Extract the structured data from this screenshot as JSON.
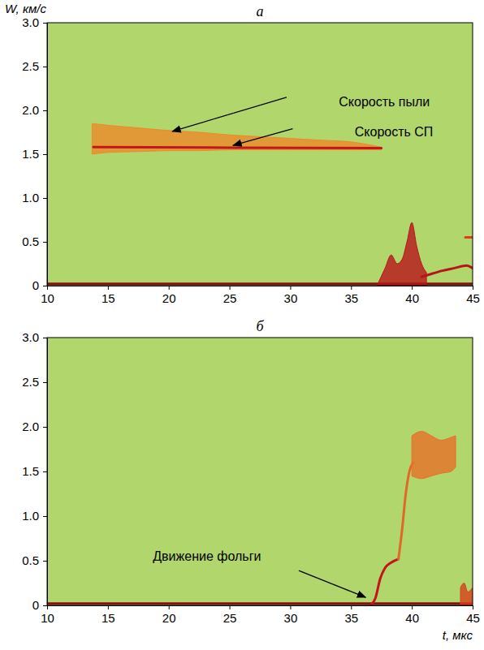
{
  "chart_data": [
    {
      "type": "line",
      "title": "а",
      "y_label": "W, км/с",
      "xlim": [
        10,
        45
      ],
      "xticks": [
        10,
        15,
        20,
        25,
        30,
        35,
        40,
        45
      ],
      "ylim": [
        0,
        3
      ],
      "yticks": [
        0,
        0.5,
        {
          "value": 1,
          "label": "1.0"
        },
        1.5,
        {
          "value": 2,
          "label": "2.0"
        },
        2.5,
        {
          "value": 3,
          "label": "3.0"
        }
      ],
      "grid": false,
      "series": [
        {
          "type": "line",
          "color": "#8c0c12",
          "x": [
            10,
            45
          ],
          "values": [
            0.02,
            0.02
          ]
        },
        {
          "type": "area",
          "color": "#ee8a2c",
          "x": [
            13.7,
            15,
            17.5,
            20,
            22.5,
            25,
            27.5,
            30,
            32.5,
            35,
            37.5
          ],
          "values": [
            1.85,
            1.83,
            1.8,
            1.77,
            1.75,
            1.72,
            1.7,
            1.68,
            1.66,
            1.64,
            1.58
          ],
          "lower": [
            1.5,
            1.52,
            1.53,
            1.54,
            1.54,
            1.55,
            1.55,
            1.55,
            1.55,
            1.55,
            1.55
          ]
        },
        {
          "type": "line",
          "color": "#c4141c",
          "x": [
            13.8,
            25,
            37.5
          ],
          "values": [
            1.58,
            1.575,
            1.57
          ]
        },
        {
          "type": "area",
          "color": "#b8141a",
          "x": [
            37.2,
            37.8,
            38.3,
            38.8,
            39.2,
            39.6,
            40,
            40.4,
            40.8,
            41.2
          ],
          "values": [
            0.02,
            0.2,
            0.35,
            0.25,
            0.3,
            0.5,
            0.72,
            0.45,
            0.25,
            0.15
          ],
          "lower": [
            0,
            0,
            0,
            0,
            0,
            0,
            0,
            0,
            0,
            0
          ]
        },
        {
          "type": "line",
          "color": "#b8141a",
          "x": [
            40.8,
            41.5,
            42.5,
            43.5,
            44.5,
            45
          ],
          "values": [
            0.1,
            0.13,
            0.17,
            0.2,
            0.23,
            0.2
          ]
        },
        {
          "type": "line",
          "color": "#d8401e",
          "x": [
            44.4,
            45
          ],
          "values": [
            0.55,
            0.55
          ]
        }
      ],
      "annotations": [
        {
          "text": "Скорость пыли",
          "text_at": [
            34,
            2.1
          ],
          "arrow_from": [
            29.7,
            2.15
          ],
          "arrow_to": [
            20.3,
            1.76
          ]
        },
        {
          "text": "Скорость СП",
          "text_at": [
            35.3,
            1.76
          ],
          "arrow_from": [
            30.2,
            1.79
          ],
          "arrow_to": [
            25.3,
            1.6
          ]
        }
      ]
    },
    {
      "type": "line",
      "title": "б",
      "x_label": "t, мкс",
      "xlim": [
        10,
        45
      ],
      "xticks": [
        10,
        15,
        20,
        25,
        30,
        35,
        40,
        45
      ],
      "ylim": [
        0,
        3
      ],
      "yticks": [
        0,
        0.5,
        {
          "value": 1,
          "label": "1.0"
        },
        1.5,
        {
          "value": 2,
          "label": "2.0"
        },
        2.5,
        {
          "value": 3,
          "label": "3.0"
        }
      ],
      "grid": false,
      "series": [
        {
          "type": "line",
          "color": "#8c0c12",
          "x": [
            10,
            45
          ],
          "values": [
            0.02,
            0.02
          ]
        },
        {
          "type": "line",
          "color": "#c4141c",
          "x": [
            36.6,
            37,
            37.4,
            37.8,
            38.3,
            38.9
          ],
          "values": [
            0,
            0.08,
            0.3,
            0.42,
            0.48,
            0.52
          ]
        },
        {
          "type": "line",
          "color": "#e2682a",
          "x": [
            38.9,
            39.2,
            39.5,
            39.8,
            40.1
          ],
          "values": [
            0.52,
            0.85,
            1.25,
            1.5,
            1.6
          ]
        },
        {
          "type": "area",
          "color": "#e8702a",
          "x": [
            40,
            40.8,
            41.6,
            42.4,
            43.2,
            43.6
          ],
          "values": [
            1.9,
            1.95,
            1.9,
            1.85,
            1.88,
            1.9
          ],
          "lower": [
            1.45,
            1.42,
            1.45,
            1.48,
            1.5,
            1.55
          ]
        },
        {
          "type": "area",
          "color": "#d8401e",
          "x": [
            44,
            44.3,
            44.6,
            45
          ],
          "values": [
            0.2,
            0.25,
            0.15,
            0.2
          ],
          "lower": [
            0,
            0,
            0,
            0
          ]
        }
      ],
      "annotations": [
        {
          "text": "Движение фольги",
          "text_at": [
            18.7,
            0.55
          ],
          "arrow_from": [
            30.7,
            0.39
          ],
          "arrow_to": [
            36.2,
            0.09
          ]
        }
      ]
    }
  ]
}
